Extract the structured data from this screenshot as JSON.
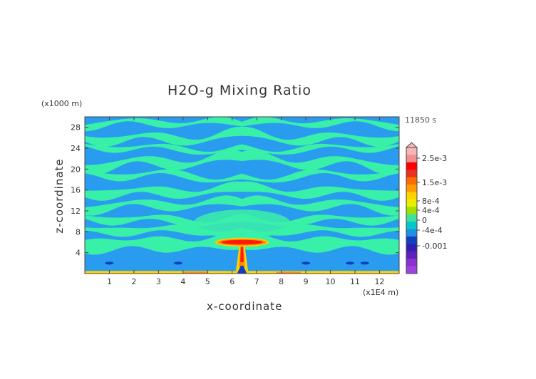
{
  "chart_data": {
    "type": "heatmap",
    "title": "H2O-g Mixing Ratio",
    "xlabel": "x-coordinate",
    "ylabel": "z-coordinate",
    "x_unit_label": "(x1E4 m)",
    "y_unit_label": "(x1000 m)",
    "time_label": "11850 s",
    "xlim": [
      0,
      12.8
    ],
    "ylim": [
      0,
      30
    ],
    "x_ticks": [
      "1",
      "2",
      "3",
      "4",
      "5",
      "6",
      "7",
      "8",
      "9",
      "10",
      "11",
      "12"
    ],
    "y_ticks": [
      "4",
      "8",
      "12",
      "16",
      "20",
      "24",
      "28"
    ],
    "colorbar": {
      "labels": [
        "2.5e-3",
        "1.5e-3",
        "8e-4",
        "4e-4",
        "0",
        "-4e-4",
        "-0.001"
      ],
      "colors": [
        "#f7b6b6",
        "#f09090",
        "#ff0000",
        "#e83020",
        "#ff6a00",
        "#ff9a00",
        "#ffd200",
        "#e8f000",
        "#a0e000",
        "#40e0a0",
        "#00c8c8",
        "#2090e0",
        "#1040c0",
        "#3020b0",
        "#6020c0",
        "#8a30d0",
        "#a040e0"
      ]
    },
    "field_colors": {
      "background": "#2a9cf0",
      "band": "#39f0a8",
      "plume_core": "#ff1a00",
      "plume_edge": "#ff8c00",
      "surface": "#ffd200"
    }
  }
}
